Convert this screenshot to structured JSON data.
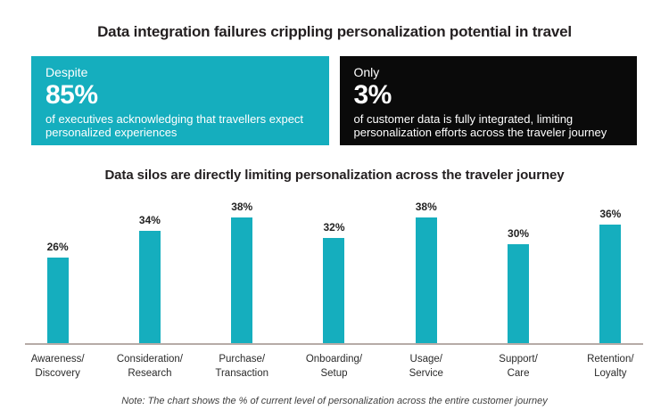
{
  "page": {
    "title": "Data integration failures crippling personalization potential in travel"
  },
  "stat_boxes": [
    {
      "prefix": "Despite",
      "value": "85%",
      "description": "of executives acknowledging that travellers expect personalized experiences",
      "bg_color": "#15aebe",
      "text_color": "#ffffff"
    },
    {
      "prefix": "Only",
      "value": "3%",
      "description": "of customer data is fully integrated, limiting personalization efforts across the traveler journey",
      "bg_color": "#0a0a0a",
      "text_color": "#ffffff"
    }
  ],
  "chart_data": {
    "type": "bar",
    "title": "Data silos are directly limiting personalization across the traveler journey",
    "categories": [
      "Awareness/Discovery",
      "Consideration/Research",
      "Purchase/Transaction",
      "Onboarding/Setup",
      "Usage/Service",
      "Support/Care",
      "Retention/Loyalty"
    ],
    "values": [
      26,
      34,
      38,
      32,
      38,
      30,
      36
    ],
    "value_labels": [
      "26%",
      "34%",
      "38%",
      "32%",
      "38%",
      "30%",
      "36%"
    ],
    "xlabel": "",
    "ylabel": "",
    "ylim": [
      0,
      40
    ],
    "grid": false,
    "legend": false,
    "bar_color": "#15aebe",
    "axis_color": "#b6aba7",
    "note": "Note: The chart shows the % of current level of personalization across the entire customer journey"
  },
  "colors": {
    "accent_teal": "#15aebe",
    "stat_black": "#0a0a0a",
    "title_text": "#231f20",
    "axis_line": "#b6aba7"
  }
}
